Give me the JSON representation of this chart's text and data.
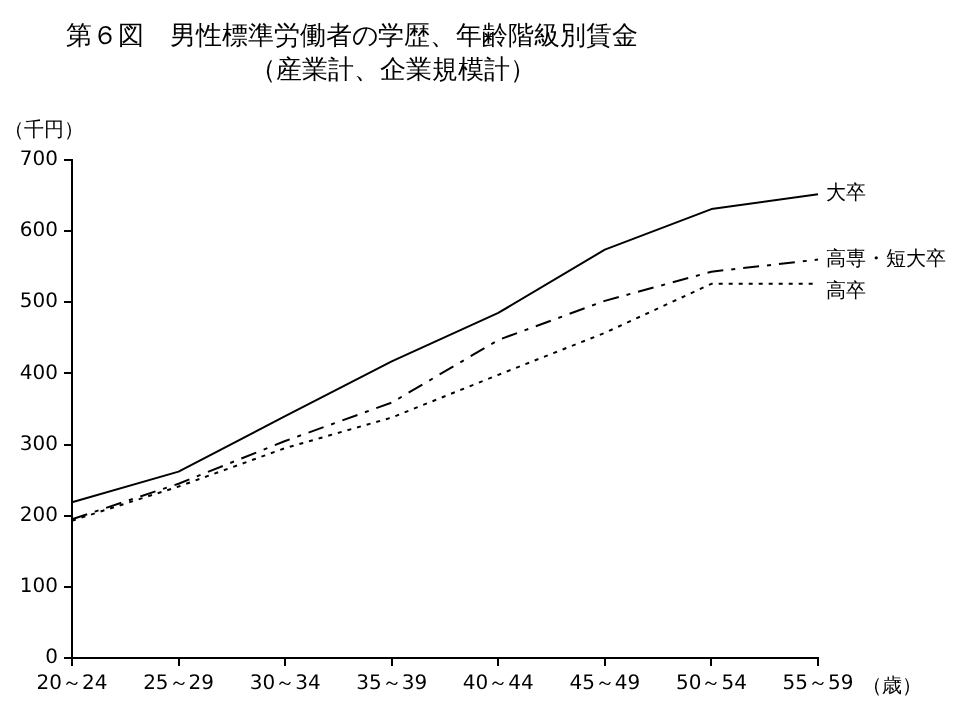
{
  "chart_data": {
    "type": "line",
    "title": "第６図　男性標準労働者の学歴、年齢階級別賃金",
    "subtitle": "（産業計、企業規模計）",
    "ylabel": "（千円）",
    "xlabel": "（歳）",
    "categories": [
      "20～24",
      "25～29",
      "30～34",
      "35～39",
      "40～44",
      "45～49",
      "50～54",
      "55～59"
    ],
    "ylim": [
      0,
      700
    ],
    "yticks": [
      0,
      100,
      200,
      300,
      400,
      500,
      600,
      700
    ],
    "grid": false,
    "legend": false,
    "marker": "none",
    "series": [
      {
        "name": "大卒",
        "color": "#000000",
        "line_style": "solid",
        "values": [
          219,
          262,
          340,
          417,
          485,
          574,
          631,
          652
        ]
      },
      {
        "name": "高専・短大卒",
        "color": "#000000",
        "line_style": "dashdot",
        "values": [
          195,
          245,
          305,
          359,
          447,
          502,
          543,
          560
        ]
      },
      {
        "name": "高卒",
        "color": "#000000",
        "line_style": "dotted",
        "values": [
          193,
          241,
          295,
          338,
          398,
          457,
          526,
          526
        ]
      }
    ]
  }
}
